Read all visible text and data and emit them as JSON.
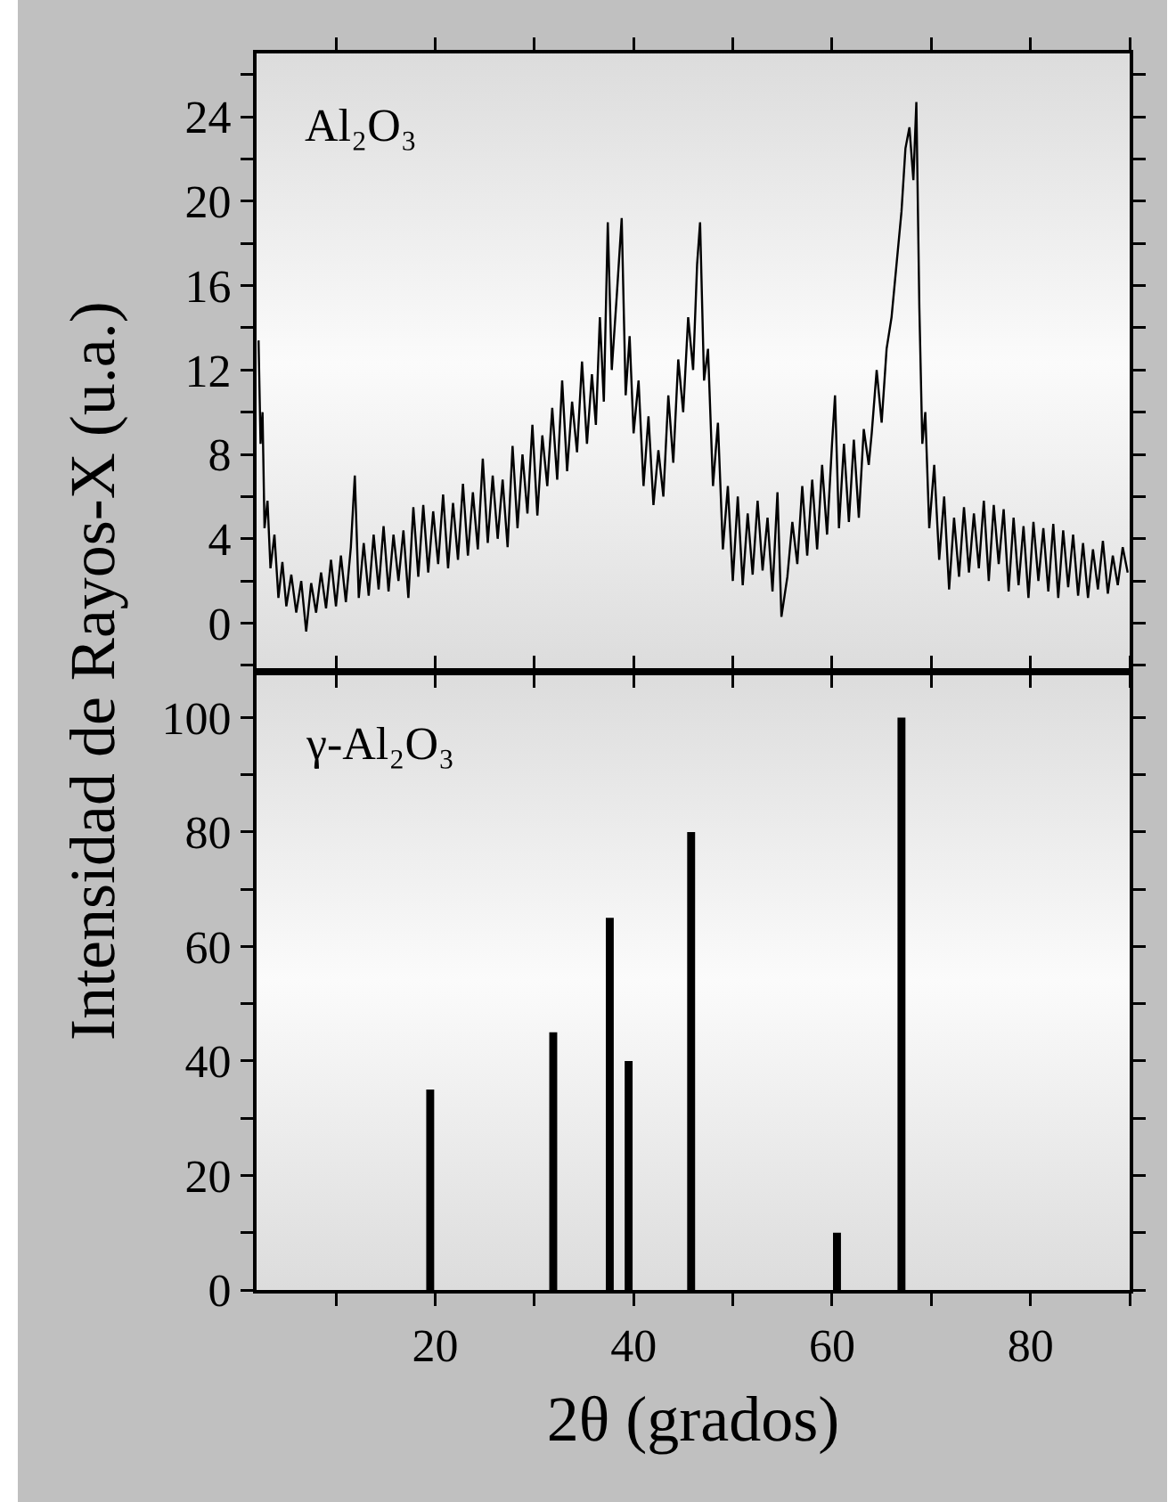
{
  "chart_data": [
    {
      "type": "line",
      "ylabel": "Intensidad de Rayos-X (u.a.)",
      "annotations": [
        "Al₂O₃"
      ],
      "color": "#000000",
      "tick_labels": "y",
      "xlim": [
        2,
        90
      ],
      "ylim": [
        -2.3,
        27
      ],
      "xticks": [
        {
          "value": 10,
          "label": null
        },
        {
          "value": 20,
          "label": null
        },
        {
          "value": 30,
          "label": null
        },
        {
          "value": 40,
          "label": null
        },
        {
          "value": 50,
          "label": null
        },
        {
          "value": 60,
          "label": null
        },
        {
          "value": 70,
          "label": null
        },
        {
          "value": 80,
          "label": null
        },
        {
          "value": 90,
          "label": null
        }
      ],
      "yticks": [
        {
          "value": -2,
          "label": null
        },
        0,
        {
          "value": 2,
          "label": null
        },
        4,
        {
          "value": 6,
          "label": null
        },
        8,
        {
          "value": 10,
          "label": null
        },
        12,
        {
          "value": 14,
          "label": null
        },
        16,
        {
          "value": 18,
          "label": null
        },
        20,
        {
          "value": 22,
          "label": null
        },
        24,
        {
          "value": 26,
          "label": null
        }
      ],
      "x": [
        2.2,
        2.4,
        2.6,
        2.8,
        3.1,
        3.4,
        3.8,
        4.2,
        4.6,
        5,
        5.5,
        6,
        6.5,
        7,
        7.5,
        8,
        8.5,
        9,
        9.5,
        10,
        10.5,
        11,
        11.5,
        11.9,
        12.3,
        12.8,
        13.3,
        13.8,
        14.3,
        14.8,
        15.3,
        15.8,
        16.3,
        16.8,
        17.3,
        17.8,
        18.3,
        18.8,
        19.3,
        19.8,
        20.3,
        20.8,
        21.3,
        21.8,
        22.3,
        22.8,
        23.3,
        23.8,
        24.3,
        24.8,
        25.3,
        25.8,
        26.3,
        26.8,
        27.3,
        27.8,
        28.3,
        28.8,
        29.3,
        29.8,
        30.3,
        30.8,
        31.3,
        31.8,
        32.3,
        32.8,
        33.3,
        33.8,
        34.3,
        34.8,
        35.3,
        35.8,
        36.2,
        36.6,
        37,
        37.4,
        37.8,
        38.3,
        38.8,
        39.2,
        39.6,
        40,
        40.5,
        41,
        41.5,
        42,
        42.5,
        43,
        43.5,
        44,
        44.5,
        45,
        45.5,
        46,
        46.4,
        46.7,
        47.1,
        47.5,
        48,
        48.5,
        49,
        49.5,
        50,
        50.5,
        51,
        51.5,
        52,
        52.5,
        53,
        53.5,
        54,
        54.5,
        54.9,
        55.5,
        56,
        56.5,
        57,
        57.5,
        58,
        58.5,
        59,
        59.5,
        60,
        60.3,
        60.7,
        61.2,
        61.7,
        62.2,
        62.7,
        63.2,
        63.7,
        64,
        64.5,
        65,
        65.5,
        66,
        66.5,
        67,
        67.4,
        67.8,
        68.2,
        68.5,
        68.8,
        69.1,
        69.4,
        69.8,
        70.3,
        70.8,
        71.3,
        71.8,
        72.3,
        72.8,
        73.3,
        73.8,
        74.3,
        74.8,
        75.3,
        75.8,
        76.3,
        76.8,
        77.3,
        77.8,
        78.3,
        78.8,
        79.3,
        79.8,
        80.3,
        80.8,
        81.3,
        81.8,
        82.3,
        82.8,
        83.3,
        83.8,
        84.3,
        84.8,
        85.3,
        85.8,
        86.3,
        86.8,
        87.3,
        87.8,
        88.3,
        88.8,
        89.3,
        89.8
      ],
      "values": [
        13.4,
        8.5,
        10,
        4.5,
        5.8,
        2.6,
        4.2,
        1.2,
        2.9,
        0.8,
        2.3,
        0.5,
        2,
        -0.4,
        1.9,
        0.5,
        2.4,
        0.7,
        3,
        0.8,
        3.2,
        1,
        3.6,
        7,
        1.2,
        3.8,
        1.3,
        4.2,
        1.6,
        4.6,
        1.5,
        4.2,
        2,
        4.4,
        1.2,
        5.5,
        2.2,
        5.6,
        2.4,
        5.3,
        2.8,
        6.1,
        2.6,
        5.7,
        3,
        6.6,
        3.2,
        6.2,
        3.5,
        7.8,
        3.8,
        7,
        4,
        6.8,
        3.6,
        8.4,
        4.5,
        8,
        5.2,
        9.4,
        5.1,
        8.9,
        6.5,
        10.2,
        6.8,
        11.5,
        7.2,
        10.5,
        8.1,
        12.4,
        8.5,
        11.8,
        9.4,
        14.5,
        10.5,
        19,
        12,
        15.5,
        19.2,
        10.8,
        13.6,
        9,
        11.5,
        6.5,
        9.8,
        5.6,
        8.2,
        6,
        10.8,
        7.6,
        12.5,
        10,
        14.5,
        12,
        17,
        19,
        11.5,
        13,
        6.5,
        9.5,
        3.5,
        6.5,
        2,
        6,
        1.8,
        5.2,
        2.3,
        5.8,
        2.5,
        5,
        1.5,
        6.2,
        0.3,
        2.2,
        4.8,
        2.8,
        6.5,
        3.2,
        6.8,
        3.5,
        7.5,
        4.2,
        8.5,
        10.8,
        4.5,
        8.5,
        4.8,
        8.7,
        5,
        9.2,
        7.5,
        9,
        12,
        9.5,
        13,
        14.5,
        17,
        19.5,
        22.5,
        23.5,
        21,
        24.7,
        15,
        8.5,
        10,
        4.5,
        7.5,
        3,
        6,
        1.6,
        5,
        2.2,
        5.5,
        2.4,
        5.2,
        2.6,
        5.8,
        2,
        5.6,
        2.8,
        5.4,
        1.5,
        5,
        1.8,
        4.6,
        1.2,
        4.8,
        2,
        4.5,
        1.5,
        4.7,
        1.2,
        4.4,
        1.7,
        4.2,
        1.3,
        3.8,
        1.2,
        3.5,
        1.6,
        3.9,
        1.4,
        3.2,
        1.8,
        3.6,
        2.4
      ]
    },
    {
      "type": "bar",
      "xlabel": "2θ (grados)",
      "annotations": [
        "γ-Al₂O₃"
      ],
      "color": "#000000",
      "xlim": [
        2,
        90
      ],
      "ylim": [
        0,
        108
      ],
      "xticks": [
        {
          "value": 10,
          "label": null
        },
        20,
        {
          "value": 30,
          "label": null
        },
        40,
        {
          "value": 50,
          "label": null
        },
        60,
        {
          "value": 70,
          "label": null
        },
        80,
        {
          "value": 90,
          "label": null
        }
      ],
      "yticks": [
        0,
        {
          "value": 10,
          "label": null
        },
        20,
        {
          "value": 30,
          "label": null
        },
        40,
        {
          "value": 50,
          "label": null
        },
        60,
        {
          "value": 70,
          "label": null
        },
        80,
        {
          "value": 90,
          "label": null
        },
        100
      ],
      "x": [
        19.5,
        31.9,
        37.6,
        39.5,
        45.8,
        60.5,
        67
      ],
      "values": [
        35,
        45,
        65,
        40,
        80,
        10,
        100
      ]
    }
  ]
}
